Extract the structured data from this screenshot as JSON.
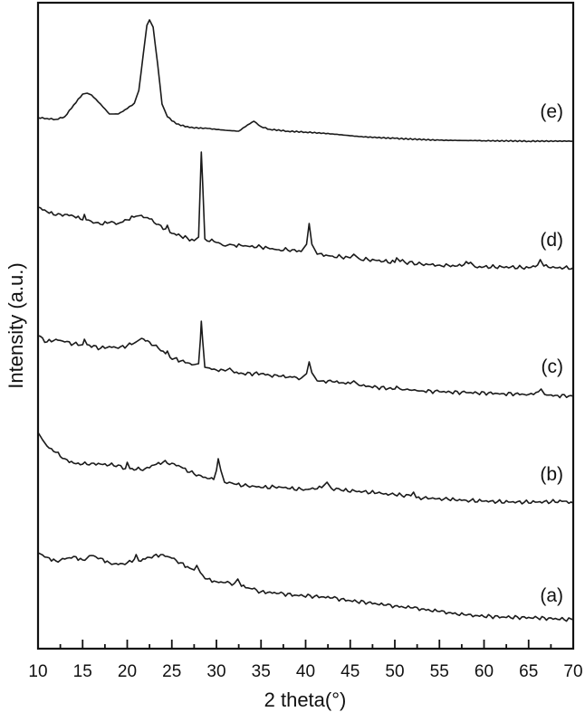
{
  "chart_data": {
    "type": "line",
    "title": "",
    "xlabel": "2 theta(°)",
    "ylabel": "Intensity (a.u.)",
    "xlim": [
      10,
      70
    ],
    "x_ticks_major": [
      10,
      15,
      20,
      25,
      30,
      35,
      40,
      45,
      50,
      55,
      60,
      65,
      70
    ],
    "x_ticks_minor": [
      12.5,
      17.5,
      22.5,
      27.5,
      32.5,
      37.5,
      42.5,
      47.5,
      52.5,
      57.5,
      62.5,
      67.5
    ],
    "y_ticks": [],
    "grid": false,
    "legend": "inline labels at right end of each curve",
    "colors": {
      "line": "#1a1a1a",
      "axis": "#111111",
      "background": "#ffffff"
    },
    "series": [
      {
        "name": "(e)",
        "label_pos": [
          622,
          130
        ],
        "points": [
          [
            10,
            130
          ],
          [
            11,
            131
          ],
          [
            12,
            132
          ],
          [
            13,
            129
          ],
          [
            14,
            116
          ],
          [
            15,
            104
          ],
          [
            15.5,
            103
          ],
          [
            16,
            105
          ],
          [
            17,
            115
          ],
          [
            18,
            126
          ],
          [
            19,
            126
          ],
          [
            20,
            120
          ],
          [
            20.8,
            114
          ],
          [
            21.3,
            100
          ],
          [
            21.8,
            60
          ],
          [
            22.2,
            28
          ],
          [
            22.5,
            22
          ],
          [
            22.9,
            30
          ],
          [
            23.4,
            70
          ],
          [
            23.9,
            115
          ],
          [
            24.5,
            129
          ],
          [
            25.5,
            137
          ],
          [
            27,
            141
          ],
          [
            29,
            142
          ],
          [
            31,
            144
          ],
          [
            32.5,
            145
          ],
          [
            33.5,
            138
          ],
          [
            34.2,
            134
          ],
          [
            35,
            140
          ],
          [
            36,
            143
          ],
          [
            38,
            145
          ],
          [
            40,
            146
          ],
          [
            43,
            148
          ],
          [
            46,
            151
          ],
          [
            50,
            153
          ],
          [
            55,
            155
          ],
          [
            60,
            155.5
          ],
          [
            65,
            156
          ],
          [
            70,
            156
          ]
        ]
      },
      {
        "name": "(d)",
        "label_pos": [
          622,
          272
        ],
        "points": [
          [
            10,
            229
          ],
          [
            11,
            234
          ],
          [
            12,
            238
          ],
          [
            13,
            237
          ],
          [
            14,
            239
          ],
          [
            15,
            243
          ],
          [
            15.2,
            237
          ],
          [
            15.4,
            243
          ],
          [
            17,
            248
          ],
          [
            18,
            246
          ],
          [
            19,
            247
          ],
          [
            20,
            243
          ],
          [
            21,
            239
          ],
          [
            21.6,
            238
          ],
          [
            22.5,
            242
          ],
          [
            23.5,
            248
          ],
          [
            24.3,
            253
          ],
          [
            24.5,
            249
          ],
          [
            24.8,
            257
          ],
          [
            26,
            261
          ],
          [
            27.5,
            266
          ],
          [
            28,
            262
          ],
          [
            28.2,
            200
          ],
          [
            28.3,
            168
          ],
          [
            28.45,
            200
          ],
          [
            28.7,
            264
          ],
          [
            30,
            268
          ],
          [
            31,
            272
          ],
          [
            31.5,
            270
          ],
          [
            32,
            271
          ],
          [
            33,
            272
          ],
          [
            35,
            273
          ],
          [
            36,
            275
          ],
          [
            37,
            276
          ],
          [
            38.5,
            276
          ],
          [
            39.5,
            278
          ],
          [
            40.1,
            270
          ],
          [
            40.4,
            247
          ],
          [
            40.7,
            270
          ],
          [
            41.3,
            281
          ],
          [
            43,
            283
          ],
          [
            45,
            285
          ],
          [
            45.4,
            281
          ],
          [
            46,
            286
          ],
          [
            48,
            288
          ],
          [
            50,
            290
          ],
          [
            50.2,
            285
          ],
          [
            50.6,
            289
          ],
          [
            53,
            292
          ],
          [
            55,
            293
          ],
          [
            57,
            294
          ],
          [
            58.5,
            290
          ],
          [
            59,
            295
          ],
          [
            62,
            295
          ],
          [
            65,
            296
          ],
          [
            66,
            293
          ],
          [
            66.3,
            287
          ],
          [
            66.7,
            294
          ],
          [
            68,
            296
          ],
          [
            70,
            296
          ]
        ]
      },
      {
        "name": "(c)",
        "label_pos": [
          622,
          412
        ],
        "points": [
          [
            10,
            371
          ],
          [
            11,
            378
          ],
          [
            12,
            375
          ],
          [
            13,
            378
          ],
          [
            14,
            380
          ],
          [
            15,
            381
          ],
          [
            15.2,
            375
          ],
          [
            15.5,
            381
          ],
          [
            17,
            385
          ],
          [
            18,
            383
          ],
          [
            19,
            385
          ],
          [
            20,
            382
          ],
          [
            21,
            378
          ],
          [
            21.6,
            374
          ],
          [
            22.5,
            378
          ],
          [
            23.5,
            385
          ],
          [
            24.3,
            391
          ],
          [
            24.5,
            388
          ],
          [
            24.8,
            395
          ],
          [
            26,
            399
          ],
          [
            27.5,
            403
          ],
          [
            28,
            402
          ],
          [
            28.2,
            375
          ],
          [
            28.3,
            355
          ],
          [
            28.45,
            375
          ],
          [
            28.7,
            406
          ],
          [
            30,
            409
          ],
          [
            31,
            410
          ],
          [
            31.5,
            407
          ],
          [
            32,
            412
          ],
          [
            33,
            413
          ],
          [
            35,
            413
          ],
          [
            36,
            415
          ],
          [
            37,
            416
          ],
          [
            38.5,
            417
          ],
          [
            39.5,
            418
          ],
          [
            40.1,
            413
          ],
          [
            40.4,
            400
          ],
          [
            40.7,
            412
          ],
          [
            41.3,
            421
          ],
          [
            43,
            422
          ],
          [
            45,
            424
          ],
          [
            45.4,
            421
          ],
          [
            46,
            426
          ],
          [
            48,
            428
          ],
          [
            50,
            430
          ],
          [
            50.2,
            427
          ],
          [
            50.6,
            430
          ],
          [
            53,
            432
          ],
          [
            55,
            433
          ],
          [
            58,
            434
          ],
          [
            62,
            435
          ],
          [
            65,
            436
          ],
          [
            66.1,
            433
          ],
          [
            66.4,
            430
          ],
          [
            66.8,
            436
          ],
          [
            68,
            437
          ],
          [
            70,
            438
          ]
        ]
      },
      {
        "name": "(b)",
        "label_pos": [
          622,
          531
        ],
        "points": [
          [
            10,
            478
          ],
          [
            10.5,
            486
          ],
          [
            11,
            493
          ],
          [
            12,
            500
          ],
          [
            13,
            507
          ],
          [
            14,
            512
          ],
          [
            15,
            513
          ],
          [
            16,
            512
          ],
          [
            17,
            513
          ],
          [
            18,
            514
          ],
          [
            19,
            514
          ],
          [
            19.8,
            518
          ],
          [
            20,
            511
          ],
          [
            20.3,
            518
          ],
          [
            21,
            519
          ],
          [
            22,
            518
          ],
          [
            23,
            514
          ],
          [
            24,
            511
          ],
          [
            25,
            512
          ],
          [
            26,
            516
          ],
          [
            27,
            522
          ],
          [
            28,
            525
          ],
          [
            29,
            529
          ],
          [
            29.7,
            530
          ],
          [
            30,
            520
          ],
          [
            30.2,
            507
          ],
          [
            30.5,
            520
          ],
          [
            30.9,
            533
          ],
          [
            32,
            535
          ],
          [
            33,
            537
          ],
          [
            34,
            537
          ],
          [
            35,
            539
          ],
          [
            37,
            538
          ],
          [
            38,
            540
          ],
          [
            40,
            541
          ],
          [
            41.8,
            539
          ],
          [
            42.4,
            533
          ],
          [
            42.9,
            540
          ],
          [
            44,
            542
          ],
          [
            46,
            543
          ],
          [
            48,
            545
          ],
          [
            50,
            547
          ],
          [
            51.8,
            548
          ],
          [
            52.1,
            544
          ],
          [
            52.4,
            550
          ],
          [
            54,
            551
          ],
          [
            56,
            552
          ],
          [
            58,
            553
          ],
          [
            60,
            554
          ],
          [
            63,
            555
          ],
          [
            66,
            555
          ],
          [
            69,
            554
          ],
          [
            70,
            556
          ]
        ]
      },
      {
        "name": "(a)",
        "label_pos": [
          622,
          665
        ],
        "points": [
          [
            10,
            611
          ],
          [
            11,
            616
          ],
          [
            12,
            620
          ],
          [
            13,
            618
          ],
          [
            14,
            615
          ],
          [
            15,
            619
          ],
          [
            16,
            614
          ],
          [
            17,
            617
          ],
          [
            18,
            622
          ],
          [
            19,
            624
          ],
          [
            20,
            622
          ],
          [
            20.8,
            618
          ],
          [
            21,
            613
          ],
          [
            21.3,
            620
          ],
          [
            22,
            618
          ],
          [
            23,
            614
          ],
          [
            24,
            613
          ],
          [
            25,
            617
          ],
          [
            26,
            622
          ],
          [
            27,
            628
          ],
          [
            27.5,
            630
          ],
          [
            27.8,
            625
          ],
          [
            28.2,
            633
          ],
          [
            29,
            640
          ],
          [
            30,
            643
          ],
          [
            31,
            644
          ],
          [
            32,
            645
          ],
          [
            32.4,
            640
          ],
          [
            32.8,
            648
          ],
          [
            34,
            651
          ],
          [
            35,
            654
          ],
          [
            37,
            656
          ],
          [
            39,
            658
          ],
          [
            41,
            659
          ],
          [
            43,
            661
          ],
          [
            45,
            664
          ],
          [
            47,
            666
          ],
          [
            49,
            669
          ],
          [
            52,
            672
          ],
          [
            55,
            676
          ],
          [
            58,
            680
          ],
          [
            62,
            682
          ],
          [
            66,
            683
          ],
          [
            70,
            685
          ]
        ]
      }
    ]
  }
}
